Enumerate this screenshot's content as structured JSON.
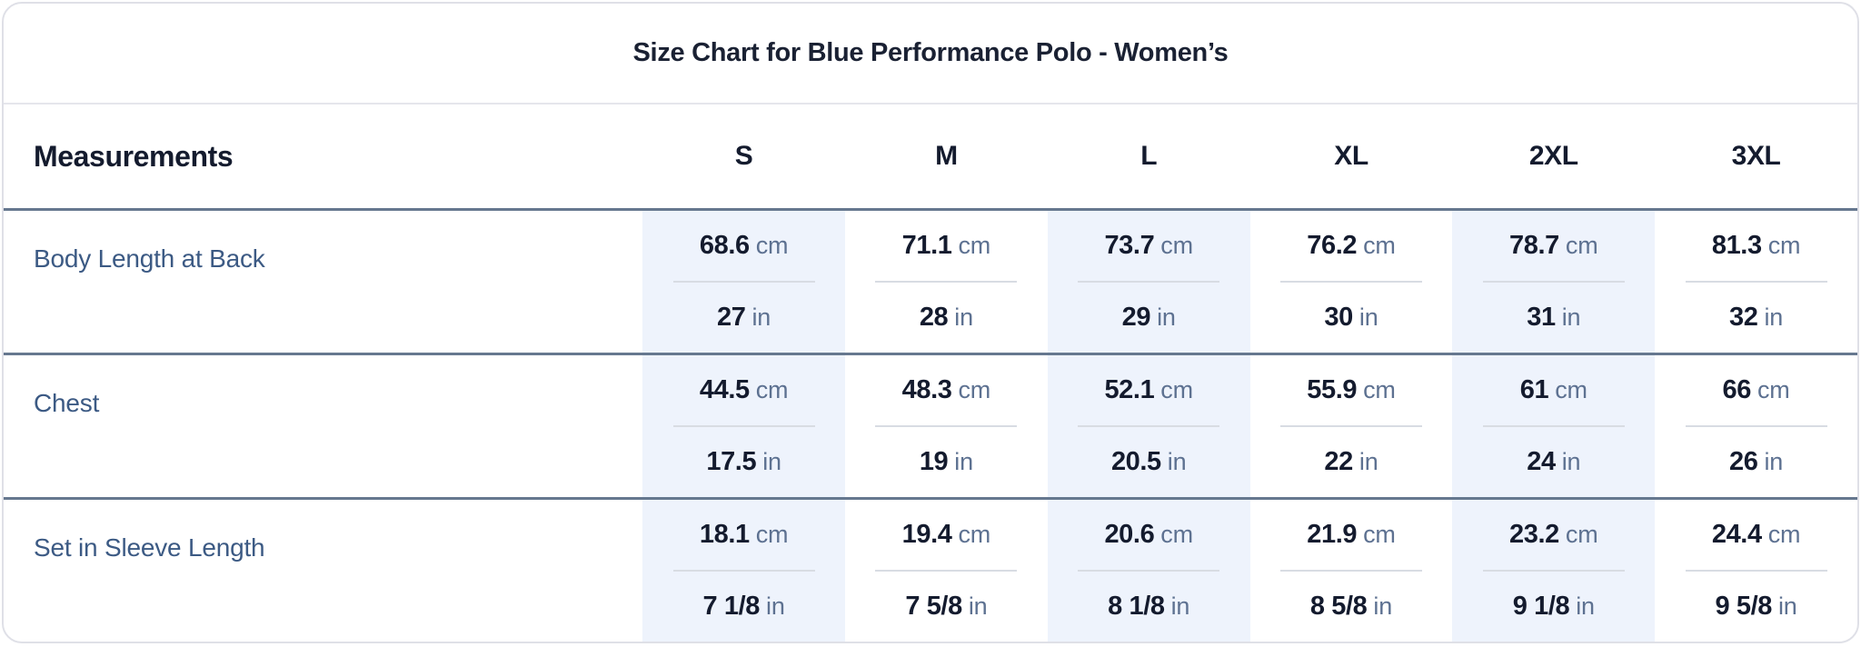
{
  "title": "Size Chart for Blue Performance Polo - Women’s",
  "table": {
    "measurements_header": "Measurements",
    "sizes": [
      "S",
      "M",
      "L",
      "XL",
      "2XL",
      "3XL"
    ],
    "units": {
      "metric": "cm",
      "imperial": "in"
    },
    "rows": [
      {
        "label": "Body Length at Back",
        "cm": [
          "68.6",
          "71.1",
          "73.7",
          "76.2",
          "78.7",
          "81.3"
        ],
        "in": [
          "27",
          "28",
          "29",
          "30",
          "31",
          "32"
        ]
      },
      {
        "label": "Chest",
        "cm": [
          "44.5",
          "48.3",
          "52.1",
          "55.9",
          "61",
          "66"
        ],
        "in": [
          "17.5",
          "19",
          "20.5",
          "22",
          "24",
          "26"
        ]
      },
      {
        "label": "Set in Sleeve Length",
        "cm": [
          "18.1",
          "19.4",
          "20.6",
          "21.9",
          "23.2",
          "24.4"
        ],
        "in": [
          "7 1/8",
          "7 5/8",
          "8 1/8",
          "8 5/8",
          "9 1/8",
          "9 5/8"
        ]
      }
    ]
  },
  "colors": {
    "navy": "#141b2e",
    "title-navy": "#1a2133",
    "label-blue": "#3c5a84",
    "unit-slate": "#5d7191",
    "stripe": "#eef3fc",
    "divider-light": "#e5e6ec",
    "divider-slate": "#66788f",
    "cell-divider": "#d8dce3",
    "card-border": "#dfe0e7",
    "card-bg": "#ffffff"
  }
}
